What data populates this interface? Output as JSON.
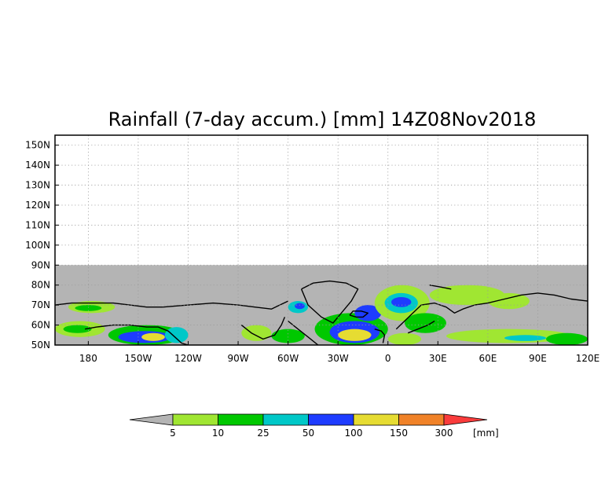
{
  "title": "Rainfall (7-day accum.) [mm] 14Z08Nov2018",
  "map": {
    "lon_range": [
      160,
      480
    ],
    "lat_range": [
      50,
      155
    ],
    "data_top_lat": 90,
    "no_data_color": "#b4b4b4",
    "x_ticks": [
      {
        "lon": 180,
        "label": "180"
      },
      {
        "lon": 210,
        "label": "150W"
      },
      {
        "lon": 240,
        "label": "120W"
      },
      {
        "lon": 270,
        "label": "90W"
      },
      {
        "lon": 300,
        "label": "60W"
      },
      {
        "lon": 330,
        "label": "30W"
      },
      {
        "lon": 360,
        "label": "0"
      },
      {
        "lon": 390,
        "label": "30E"
      },
      {
        "lon": 420,
        "label": "60E"
      },
      {
        "lon": 450,
        "label": "90E"
      },
      {
        "lon": 480,
        "label": "120E"
      }
    ],
    "y_ticks": [
      {
        "lat": 50,
        "label": "50N"
      },
      {
        "lat": 60,
        "label": "60N"
      },
      {
        "lat": 70,
        "label": "70N"
      },
      {
        "lat": 80,
        "label": "80N"
      },
      {
        "lat": 90,
        "label": "90N"
      },
      {
        "lat": 100,
        "label": "100N"
      },
      {
        "lat": 110,
        "label": "110N"
      },
      {
        "lat": 120,
        "label": "120N"
      },
      {
        "lat": 130,
        "label": "130N"
      },
      {
        "lat": 140,
        "label": "140N"
      },
      {
        "lat": 150,
        "label": "150N"
      }
    ],
    "rain_regions": [
      {
        "name": "alaska-interior",
        "lon": [
          168,
          196
        ],
        "lat": [
          66,
          72
        ],
        "level": 0
      },
      {
        "name": "alaska-interior-core",
        "lon": [
          172,
          188
        ],
        "lat": [
          67,
          70
        ],
        "level": 1
      },
      {
        "name": "bering-sea",
        "lon": [
          160,
          190
        ],
        "lat": [
          54,
          62
        ],
        "level": 0
      },
      {
        "name": "bering-sea-core",
        "lon": [
          165,
          182
        ],
        "lat": [
          56,
          60
        ],
        "level": 1
      },
      {
        "name": "gulf-of-alaska",
        "lon": [
          192,
          238
        ],
        "lat": [
          50,
          60
        ],
        "level": 1
      },
      {
        "name": "gulf-of-alaska-core",
        "lon": [
          198,
          230
        ],
        "lat": [
          51,
          57
        ],
        "level": 3
      },
      {
        "name": "gulf-of-alaska-heavy",
        "lon": [
          212,
          226
        ],
        "lat": [
          52,
          56
        ],
        "level": 4
      },
      {
        "name": "bc-coast",
        "lon": [
          226,
          240
        ],
        "lat": [
          51,
          59
        ],
        "level": 2
      },
      {
        "name": "hudson-bay",
        "lon": [
          272,
          290
        ],
        "lat": [
          52,
          60
        ],
        "level": 0
      },
      {
        "name": "labrador",
        "lon": [
          290,
          310
        ],
        "lat": [
          51,
          58
        ],
        "level": 1
      },
      {
        "name": "baffin-bay",
        "lon": [
          300,
          312
        ],
        "lat": [
          66,
          72
        ],
        "level": 2
      },
      {
        "name": "baffin-bay-core",
        "lon": [
          304,
          310
        ],
        "lat": [
          68,
          71
        ],
        "level": 3
      },
      {
        "name": "north-atlantic",
        "lon": [
          316,
          360
        ],
        "lat": [
          50,
          66
        ],
        "level": 1
      },
      {
        "name": "north-atlantic-core",
        "lon": [
          325,
          355
        ],
        "lat": [
          51,
          62
        ],
        "level": 3
      },
      {
        "name": "north-atlantic-heavy",
        "lon": [
          330,
          350
        ],
        "lat": [
          52,
          58
        ],
        "level": 4
      },
      {
        "name": "iceland",
        "lon": [
          340,
          356
        ],
        "lat": [
          62,
          70
        ],
        "level": 3
      },
      {
        "name": "norwegian-sea",
        "lon": [
          352,
          385
        ],
        "lat": [
          62,
          80
        ],
        "level": 0
      },
      {
        "name": "norwegian-sea-core",
        "lon": [
          358,
          378
        ],
        "lat": [
          66,
          76
        ],
        "level": 2
      },
      {
        "name": "norwegian-sea-heavy",
        "lon": [
          362,
          374
        ],
        "lat": [
          69,
          74
        ],
        "level": 3
      },
      {
        "name": "barents-sea",
        "lon": [
          385,
          430
        ],
        "lat": [
          70,
          80
        ],
        "level": 0
      },
      {
        "name": "kara-sea",
        "lon": [
          420,
          445
        ],
        "lat": [
          68,
          76
        ],
        "level": 0
      },
      {
        "name": "scandinavia",
        "lon": [
          370,
          395
        ],
        "lat": [
          56,
          66
        ],
        "level": 1
      },
      {
        "name": "europe",
        "lon": [
          360,
          380
        ],
        "lat": [
          50,
          56
        ],
        "level": 0
      },
      {
        "name": "siberia-south",
        "lon": [
          395,
          470
        ],
        "lat": [
          51,
          58
        ],
        "level": 0
      },
      {
        "name": "siberia-core",
        "lon": [
          430,
          455
        ],
        "lat": [
          52,
          55
        ],
        "level": 2
      },
      {
        "name": "east-siberia",
        "lon": [
          455,
          480
        ],
        "lat": [
          50,
          56
        ],
        "level": 1
      }
    ]
  },
  "legend": {
    "unit": "[mm]",
    "colors": [
      "#b4b4b4",
      "#a0e632",
      "#00c800",
      "#00c8c8",
      "#1e3cff",
      "#e6dc32",
      "#f08228",
      "#fa3c3c"
    ],
    "labels": [
      "5",
      "10",
      "25",
      "50",
      "100",
      "150",
      "300"
    ]
  }
}
